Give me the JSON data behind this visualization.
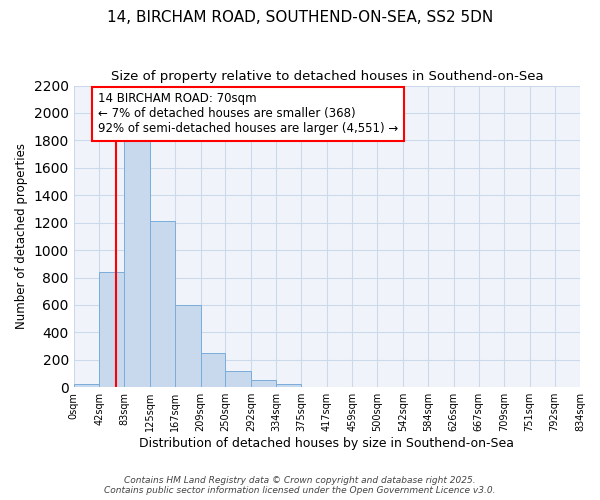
{
  "title": "14, BIRCHAM ROAD, SOUTHEND-ON-SEA, SS2 5DN",
  "subtitle": "Size of property relative to detached houses in Southend-on-Sea",
  "xlabel": "Distribution of detached houses by size in Southend-on-Sea",
  "ylabel": "Number of detached properties",
  "bar_color": "#c8d9ee",
  "bar_edge_color": "#7aaddb",
  "background_color": "#ffffff",
  "ax_background_color": "#f0f4fa",
  "annotation_box_text": "14 BIRCHAM ROAD: 70sqm\n← 7% of detached houses are smaller (368)\n92% of semi-detached houses are larger (4,551) →",
  "property_size": 70,
  "bin_edges": [
    0,
    42,
    83,
    125,
    167,
    209,
    250,
    292,
    334,
    375,
    417,
    459,
    500,
    542,
    584,
    626,
    667,
    709,
    751,
    792,
    834
  ],
  "bar_heights": [
    20,
    840,
    1810,
    1210,
    600,
    250,
    120,
    50,
    25,
    5,
    2,
    1,
    1,
    0,
    0,
    0,
    0,
    0,
    0,
    0
  ],
  "tick_labels": [
    "0sqm",
    "42sqm",
    "83sqm",
    "125sqm",
    "167sqm",
    "209sqm",
    "250sqm",
    "292sqm",
    "334sqm",
    "375sqm",
    "417sqm",
    "459sqm",
    "500sqm",
    "542sqm",
    "584sqm",
    "626sqm",
    "667sqm",
    "709sqm",
    "751sqm",
    "792sqm",
    "834sqm"
  ],
  "ylim": [
    0,
    2200
  ],
  "yticks": [
    0,
    200,
    400,
    600,
    800,
    1000,
    1200,
    1400,
    1600,
    1800,
    2000,
    2200
  ],
  "footnote": "Contains HM Land Registry data © Crown copyright and database right 2025.\nContains public sector information licensed under the Open Government Licence v3.0.",
  "grid_color": "#ccd9ea",
  "title_fontsize": 11,
  "subtitle_fontsize": 9.5,
  "annot_fontsize": 8.5
}
